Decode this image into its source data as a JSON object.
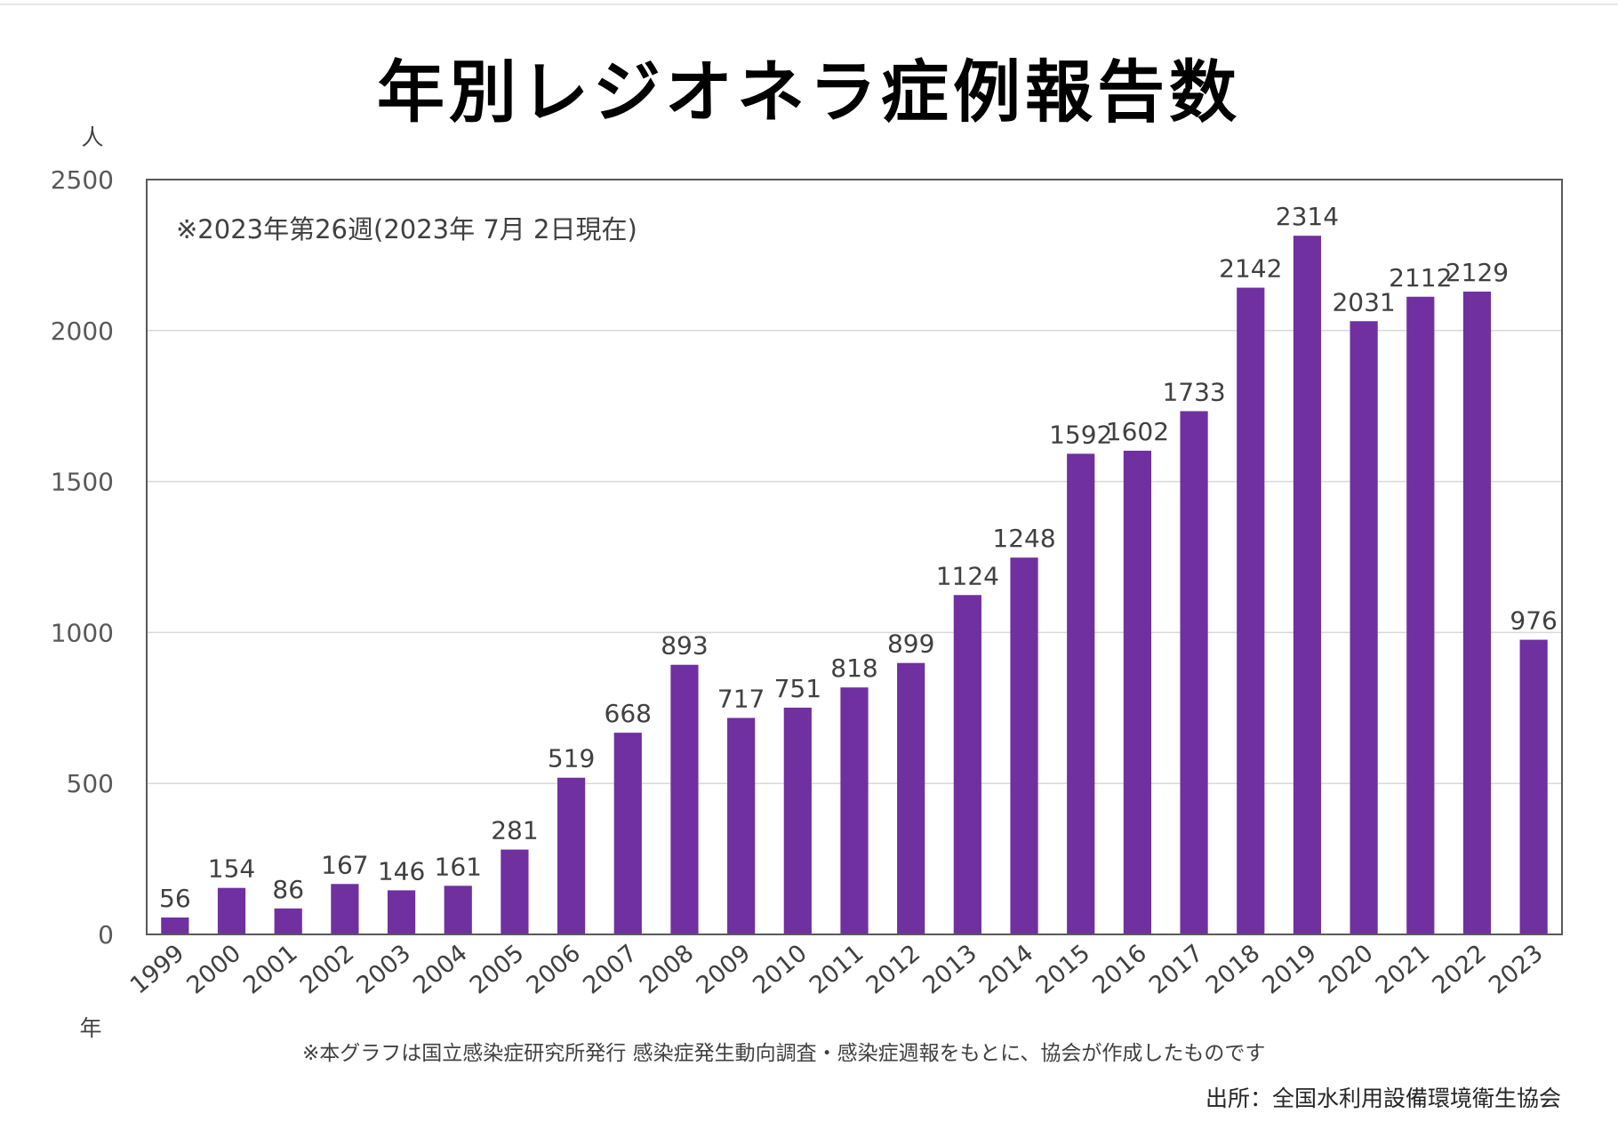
{
  "title": "年別レジオネラ症例報告数",
  "y_unit": "人",
  "x_unit": "年",
  "note": "※2023年第26週(2023年 7月 2日現在)",
  "footnote": "※本グラフは国立感染症研究所発行 感染症発生動向調査・感染症週報をもとに、協会が作成したものです",
  "source": "出所：全国水利用設備環境衛生協会",
  "colors": {
    "bar": "#7030a0",
    "grid": "#d9d9d9",
    "frame": "#595959"
  },
  "chart_data": {
    "type": "bar",
    "categories": [
      "1999",
      "2000",
      "2001",
      "2002",
      "2003",
      "2004",
      "2005",
      "2006",
      "2007",
      "2008",
      "2009",
      "2010",
      "2011",
      "2012",
      "2013",
      "2014",
      "2015",
      "2016",
      "2017",
      "2018",
      "2019",
      "2020",
      "2021",
      "2022",
      "2023"
    ],
    "values": [
      56,
      154,
      86,
      167,
      146,
      161,
      281,
      519,
      668,
      893,
      717,
      751,
      818,
      899,
      1124,
      1248,
      1592,
      1602,
      1733,
      2142,
      2314,
      2031,
      2112,
      2129,
      976
    ],
    "ylim": [
      0,
      2500
    ],
    "yticks": [
      0,
      500,
      1000,
      1500,
      2000,
      2500
    ],
    "grid": true,
    "data_labels": true
  }
}
